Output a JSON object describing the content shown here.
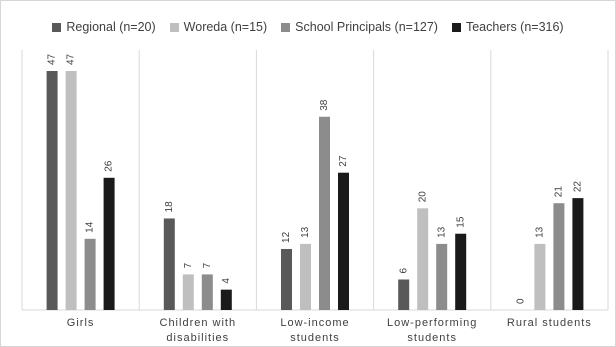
{
  "chart_data": {
    "type": "bar",
    "title": "",
    "xlabel": "",
    "ylabel": "",
    "ylim": [
      0,
      50
    ],
    "grid": false,
    "legend_position": "top",
    "categories": [
      [
        "Girls"
      ],
      [
        "Children with",
        "disabilities"
      ],
      [
        "Low-income",
        "students"
      ],
      [
        "Low-performing",
        "students"
      ],
      [
        "Rural students"
      ]
    ],
    "series": [
      {
        "name": "Regional (n=20)",
        "color": "#595959",
        "values": [
          47,
          18,
          12,
          6,
          0
        ]
      },
      {
        "name": "Woreda (n=15)",
        "color": "#bfbfbf",
        "values": [
          47,
          7,
          13,
          20,
          13
        ]
      },
      {
        "name": "School Principals (n=127)",
        "color": "#8c8c8c",
        "values": [
          14,
          7,
          38,
          13,
          21
        ]
      },
      {
        "name": "Teachers (n=316)",
        "color": "#1a1a1a",
        "values": [
          26,
          4,
          27,
          15,
          22
        ]
      }
    ]
  }
}
